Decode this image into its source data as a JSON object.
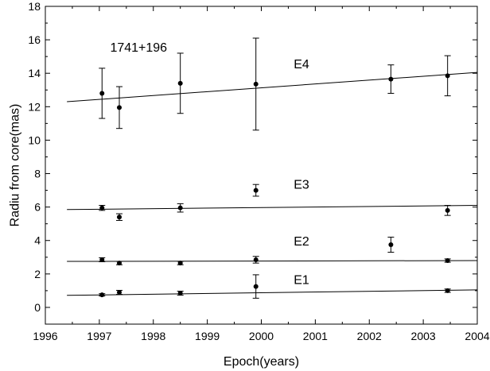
{
  "chart_data": {
    "type": "scatter",
    "title": "",
    "xlabel": "Epoch(years)",
    "ylabel": "Radiu from core(mas)",
    "xlim": [
      1996,
      2004
    ],
    "ylim": [
      -1,
      18
    ],
    "xticks": [
      1996,
      1997,
      1998,
      1999,
      2000,
      2001,
      2002,
      2003,
      2004
    ],
    "yticks": [
      0,
      2,
      4,
      6,
      8,
      10,
      12,
      14,
      16,
      18
    ],
    "annotations": [
      {
        "text": "1741+196",
        "x": 1997.2,
        "y": 15.3
      },
      {
        "text": "E4",
        "x": 2000.6,
        "y": 14.3
      },
      {
        "text": "E3",
        "x": 2000.6,
        "y": 7.1
      },
      {
        "text": "E2",
        "x": 2000.6,
        "y": 3.7
      },
      {
        "text": "E1",
        "x": 2000.6,
        "y": 1.4
      }
    ],
    "series": [
      {
        "label": "E4",
        "points": [
          {
            "x": 1997.05,
            "y": 12.8,
            "err": 1.5
          },
          {
            "x": 1997.37,
            "y": 11.95,
            "err": 1.25
          },
          {
            "x": 1998.5,
            "y": 13.4,
            "err": 1.8
          },
          {
            "x": 1999.9,
            "y": 13.35,
            "err": 2.75
          },
          {
            "x": 2002.4,
            "y": 13.65,
            "err": 0.85
          },
          {
            "x": 2003.45,
            "y": 13.85,
            "err": 1.2
          }
        ],
        "fit": [
          [
            1996.4,
            12.3
          ],
          [
            2004,
            14.05
          ]
        ]
      },
      {
        "label": "E3",
        "points": [
          {
            "x": 1997.05,
            "y": 5.95,
            "err": 0.15
          },
          {
            "x": 1997.37,
            "y": 5.4,
            "err": 0.2
          },
          {
            "x": 1998.5,
            "y": 5.95,
            "err": 0.25
          },
          {
            "x": 1999.9,
            "y": 7.0,
            "err": 0.35
          },
          {
            "x": 2003.45,
            "y": 5.8,
            "err": 0.3
          }
        ],
        "fit": [
          [
            1996.4,
            5.85
          ],
          [
            2004,
            6.1
          ]
        ]
      },
      {
        "label": "E2",
        "points": [
          {
            "x": 1997.05,
            "y": 2.85,
            "err": 0.12
          },
          {
            "x": 1997.37,
            "y": 2.65,
            "err": 0.1
          },
          {
            "x": 1998.5,
            "y": 2.65,
            "err": 0.1
          },
          {
            "x": 1999.9,
            "y": 2.85,
            "err": 0.2
          },
          {
            "x": 2002.4,
            "y": 3.75,
            "err": 0.45
          },
          {
            "x": 2003.45,
            "y": 2.8,
            "err": 0.1
          }
        ],
        "fit": [
          [
            1996.4,
            2.75
          ],
          [
            2004,
            2.8
          ]
        ]
      },
      {
        "label": "E1",
        "points": [
          {
            "x": 1997.05,
            "y": 0.75,
            "err": 0.07
          },
          {
            "x": 1997.37,
            "y": 0.9,
            "err": 0.12
          },
          {
            "x": 1998.5,
            "y": 0.85,
            "err": 0.12
          },
          {
            "x": 1999.9,
            "y": 1.25,
            "err": 0.7
          },
          {
            "x": 2003.45,
            "y": 1.0,
            "err": 0.1
          }
        ],
        "fit": [
          [
            1996.4,
            0.72
          ],
          [
            2004,
            1.05
          ]
        ]
      }
    ],
    "grid": false,
    "legend": "none"
  }
}
